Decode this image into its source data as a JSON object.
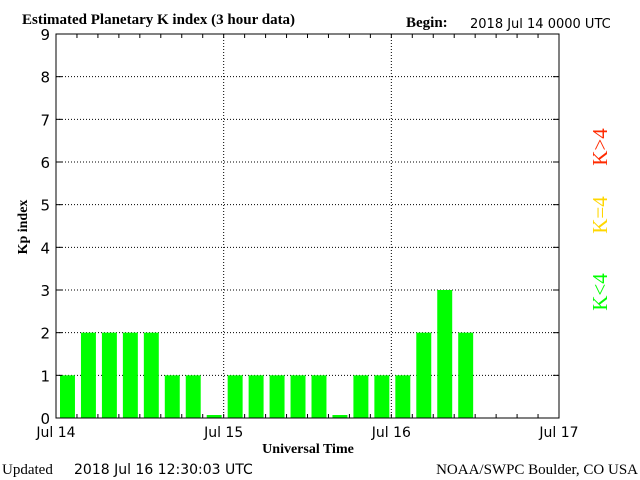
{
  "header": {
    "title": "Estimated Planetary K index (3 hour data)",
    "begin_label": "Begin:",
    "begin_value": "2018 Jul 14 0000 UTC"
  },
  "footer": {
    "updated_label": "Updated",
    "updated_value": "2018 Jul 16 12:30:03 UTC",
    "source": "NOAA/SWPC Boulder, CO USA"
  },
  "legend": {
    "low": "K<4",
    "equal": "K=4",
    "high": "K>4"
  },
  "colors": {
    "low": "#00ff00",
    "equal": "#ffd700",
    "high": "#ff2a00",
    "axis": "#000000",
    "grid": "#000000"
  },
  "chart_data": {
    "type": "bar",
    "title": "Estimated Planetary K index (3 hour data)",
    "xlabel": "Universal Time",
    "ylabel": "Kp index",
    "ylim": [
      0,
      9
    ],
    "yticks": [
      0,
      1,
      2,
      3,
      4,
      5,
      6,
      7,
      8,
      9
    ],
    "x_tick_labels": [
      "Jul 14",
      "Jul 15",
      "Jul 16",
      "Jul 17"
    ],
    "x_grid_at": [
      "Jul 15",
      "Jul 16"
    ],
    "grid": true,
    "interval_hours": 3,
    "values": [
      1,
      2,
      2,
      2,
      2,
      1,
      1,
      0,
      1,
      1,
      1,
      1,
      1,
      0,
      1,
      1,
      1,
      2,
      3,
      2
    ]
  }
}
